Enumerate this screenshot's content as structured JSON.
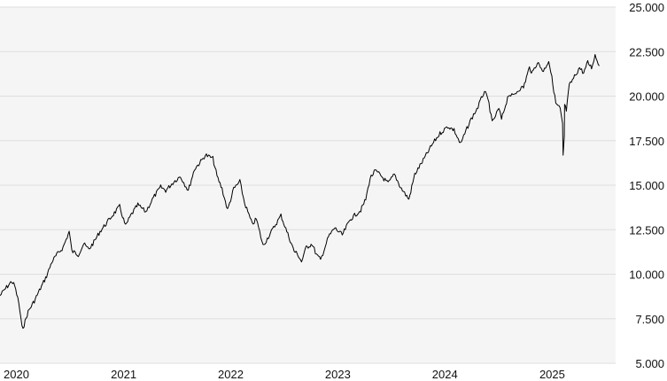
{
  "chart_data": {
    "type": "line",
    "title": "",
    "xlabel": "",
    "ylabel": "",
    "grid": true,
    "legend": "none",
    "y_axis_position": "right",
    "ylim": [
      5000,
      25000
    ],
    "y_ticks": [
      5000,
      7500,
      10000,
      12500,
      15000,
      17500,
      20000,
      22500,
      25000
    ],
    "y_tick_labels": [
      "5.000",
      "7.500",
      "10.000",
      "12.500",
      "15.000",
      "17.500",
      "20.000",
      "22.500",
      "25.000"
    ],
    "xlim": [
      "2020-01-01",
      "2025-09-30"
    ],
    "x_ticks": [
      "2020-01-01",
      "2021-01-01",
      "2022-01-01",
      "2023-01-01",
      "2024-01-01",
      "2025-01-01"
    ],
    "x_tick_labels": [
      "2020",
      "2021",
      "2022",
      "2023",
      "2024",
      "2025"
    ],
    "colors": {
      "line": "#000000",
      "plot_background": "#f5f5f5",
      "grid": "#dedede",
      "text": "#111111"
    },
    "series": [
      {
        "x": [
          "2020-01-01",
          "2020-01-20",
          "2020-02-10",
          "2020-02-20",
          "2020-03-05",
          "2020-03-16",
          "2020-03-23",
          "2020-04-06",
          "2020-04-27",
          "2020-05-18",
          "2020-06-08",
          "2020-06-26",
          "2020-07-13",
          "2020-08-03",
          "2020-08-24",
          "2020-09-02",
          "2020-09-24",
          "2020-10-12",
          "2020-10-30",
          "2020-11-16",
          "2020-12-07",
          "2020-12-31",
          "2021-01-18",
          "2021-02-12",
          "2021-03-04",
          "2021-03-22",
          "2021-04-15",
          "2021-05-12",
          "2021-06-07",
          "2021-07-02",
          "2021-07-19",
          "2021-08-16",
          "2021-09-07",
          "2021-10-04",
          "2021-10-25",
          "2021-11-19",
          "2021-12-01",
          "2021-12-27",
          "2022-01-10",
          "2022-01-27",
          "2022-02-15",
          "2022-03-08",
          "2022-03-29",
          "2022-04-14",
          "2022-05-10",
          "2022-05-24",
          "2022-06-16",
          "2022-07-11",
          "2022-08-16",
          "2022-09-05",
          "2022-09-30",
          "2022-10-13",
          "2022-10-25",
          "2022-11-10",
          "2022-11-30",
          "2022-12-15",
          "2022-12-29",
          "2023-01-25",
          "2023-02-15",
          "2023-03-13",
          "2023-04-10",
          "2023-05-15",
          "2023-06-01",
          "2023-06-16",
          "2023-07-03",
          "2023-07-19",
          "2023-08-16",
          "2023-09-07",
          "2023-09-27",
          "2023-10-26",
          "2023-11-15",
          "2023-12-14",
          "2023-12-28",
          "2024-01-18",
          "2024-02-09",
          "2024-03-07",
          "2024-03-28",
          "2024-04-19",
          "2024-05-22",
          "2024-06-18",
          "2024-07-10",
          "2024-07-25",
          "2024-08-05",
          "2024-08-28",
          "2024-09-06",
          "2024-09-30",
          "2024-10-15",
          "2024-11-05",
          "2024-11-20",
          "2024-12-10",
          "2024-12-20",
          "2025-01-06",
          "2025-01-27",
          "2025-02-14",
          "2025-02-28",
          "2025-03-10",
          "2025-03-25",
          "2025-04-02",
          "2025-04-04",
          "2025-04-08",
          "2025-04-09",
          "2025-04-15",
          "2025-04-25",
          "2025-05-13",
          "2025-05-30",
          "2025-06-13",
          "2025-06-27",
          "2025-07-10",
          "2025-07-22",
          "2025-08-05"
        ],
        "values": [
          8800,
          9200,
          9600,
          9350,
          8400,
          7000,
          7150,
          7900,
          8500,
          9200,
          9900,
          10700,
          11100,
          11500,
          12400,
          11300,
          11100,
          11700,
          11400,
          11800,
          12400,
          12900,
          13300,
          13800,
          12700,
          13300,
          13900,
          13500,
          14300,
          14900,
          14700,
          15200,
          15500,
          14700,
          15900,
          16400,
          16700,
          16500,
          15500,
          14800,
          13600,
          14800,
          15200,
          14000,
          12800,
          13100,
          11600,
          12300,
          13300,
          12400,
          11300,
          11100,
          10700,
          11500,
          11700,
          11100,
          10800,
          12100,
          12600,
          12200,
          13100,
          13600,
          14200,
          15400,
          15800,
          15600,
          15100,
          15600,
          14900,
          14200,
          15600,
          16400,
          16800,
          17400,
          17900,
          18300,
          18100,
          17300,
          18600,
          19400,
          20300,
          19600,
          18500,
          19300,
          18700,
          20100,
          20000,
          20400,
          20500,
          21600,
          21300,
          21900,
          21400,
          22000,
          20700,
          19600,
          19300,
          18400,
          16600,
          17700,
          19500,
          19200,
          20600,
          21100,
          21600,
          21300,
          21900,
          21600,
          22300,
          21700
        ]
      }
    ]
  }
}
